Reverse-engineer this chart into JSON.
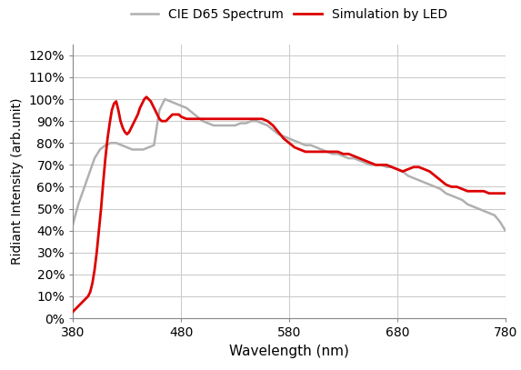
{
  "xlabel": "Wavelength (nm)",
  "ylabel": "Ridiant Intensity (arb.unit)",
  "xlim": [
    380,
    780
  ],
  "ylim": [
    0.0,
    1.25
  ],
  "yticks": [
    0.0,
    0.1,
    0.2,
    0.3,
    0.4,
    0.5,
    0.6,
    0.7,
    0.8,
    0.9,
    1.0,
    1.1,
    1.2
  ],
  "xticks": [
    380,
    480,
    580,
    680,
    780
  ],
  "legend_labels": [
    "CIE D65 Spectrum",
    "Simulation by LED"
  ],
  "cie_color": "#b0b0b0",
  "led_color": "#dd0000",
  "cie_x": [
    380,
    385,
    390,
    395,
    400,
    405,
    410,
    415,
    420,
    425,
    430,
    435,
    440,
    445,
    450,
    455,
    460,
    465,
    470,
    475,
    480,
    485,
    490,
    495,
    500,
    505,
    510,
    515,
    520,
    525,
    530,
    535,
    540,
    545,
    550,
    555,
    560,
    565,
    570,
    575,
    580,
    585,
    590,
    595,
    600,
    605,
    610,
    615,
    620,
    625,
    630,
    635,
    640,
    645,
    650,
    655,
    660,
    665,
    670,
    675,
    680,
    685,
    690,
    695,
    700,
    705,
    710,
    715,
    720,
    725,
    730,
    735,
    740,
    745,
    750,
    755,
    760,
    765,
    770,
    775,
    780
  ],
  "cie_y": [
    0.43,
    0.52,
    0.59,
    0.66,
    0.73,
    0.77,
    0.79,
    0.8,
    0.8,
    0.79,
    0.78,
    0.77,
    0.77,
    0.77,
    0.78,
    0.79,
    0.95,
    1.0,
    0.99,
    0.98,
    0.97,
    0.96,
    0.94,
    0.92,
    0.9,
    0.89,
    0.88,
    0.88,
    0.88,
    0.88,
    0.88,
    0.89,
    0.89,
    0.9,
    0.9,
    0.89,
    0.88,
    0.86,
    0.84,
    0.83,
    0.82,
    0.81,
    0.8,
    0.79,
    0.79,
    0.78,
    0.77,
    0.76,
    0.75,
    0.75,
    0.74,
    0.73,
    0.73,
    0.72,
    0.71,
    0.7,
    0.7,
    0.7,
    0.69,
    0.69,
    0.68,
    0.67,
    0.65,
    0.64,
    0.63,
    0.62,
    0.61,
    0.6,
    0.59,
    0.57,
    0.56,
    0.55,
    0.54,
    0.52,
    0.51,
    0.5,
    0.49,
    0.48,
    0.47,
    0.44,
    0.4
  ],
  "led_x": [
    380,
    382,
    384,
    386,
    388,
    390,
    392,
    394,
    396,
    398,
    400,
    402,
    404,
    406,
    408,
    410,
    412,
    414,
    416,
    418,
    420,
    422,
    424,
    426,
    428,
    430,
    432,
    434,
    436,
    438,
    440,
    442,
    444,
    446,
    448,
    450,
    452,
    454,
    456,
    458,
    460,
    462,
    464,
    466,
    468,
    470,
    472,
    474,
    476,
    478,
    480,
    485,
    490,
    495,
    500,
    505,
    510,
    515,
    520,
    525,
    530,
    535,
    540,
    545,
    550,
    555,
    560,
    565,
    570,
    575,
    580,
    585,
    590,
    595,
    600,
    605,
    610,
    615,
    620,
    625,
    630,
    635,
    640,
    645,
    650,
    655,
    660,
    665,
    670,
    675,
    680,
    685,
    690,
    695,
    700,
    705,
    710,
    715,
    720,
    725,
    730,
    735,
    740,
    745,
    750,
    755,
    760,
    765,
    770,
    775,
    780
  ],
  "led_y": [
    0.03,
    0.04,
    0.05,
    0.06,
    0.07,
    0.08,
    0.09,
    0.1,
    0.12,
    0.16,
    0.22,
    0.3,
    0.4,
    0.5,
    0.62,
    0.73,
    0.82,
    0.89,
    0.95,
    0.98,
    0.99,
    0.95,
    0.9,
    0.87,
    0.85,
    0.84,
    0.85,
    0.87,
    0.89,
    0.91,
    0.93,
    0.96,
    0.98,
    1.0,
    1.01,
    1.0,
    0.99,
    0.97,
    0.95,
    0.93,
    0.91,
    0.9,
    0.9,
    0.9,
    0.91,
    0.92,
    0.93,
    0.93,
    0.93,
    0.93,
    0.92,
    0.91,
    0.91,
    0.91,
    0.91,
    0.91,
    0.91,
    0.91,
    0.91,
    0.91,
    0.91,
    0.91,
    0.91,
    0.91,
    0.91,
    0.91,
    0.9,
    0.88,
    0.85,
    0.82,
    0.8,
    0.78,
    0.77,
    0.76,
    0.76,
    0.76,
    0.76,
    0.76,
    0.76,
    0.76,
    0.75,
    0.75,
    0.74,
    0.73,
    0.72,
    0.71,
    0.7,
    0.7,
    0.7,
    0.69,
    0.68,
    0.67,
    0.68,
    0.69,
    0.69,
    0.68,
    0.67,
    0.65,
    0.63,
    0.61,
    0.6,
    0.6,
    0.59,
    0.58,
    0.58,
    0.58,
    0.58,
    0.57,
    0.57,
    0.57,
    0.57
  ]
}
